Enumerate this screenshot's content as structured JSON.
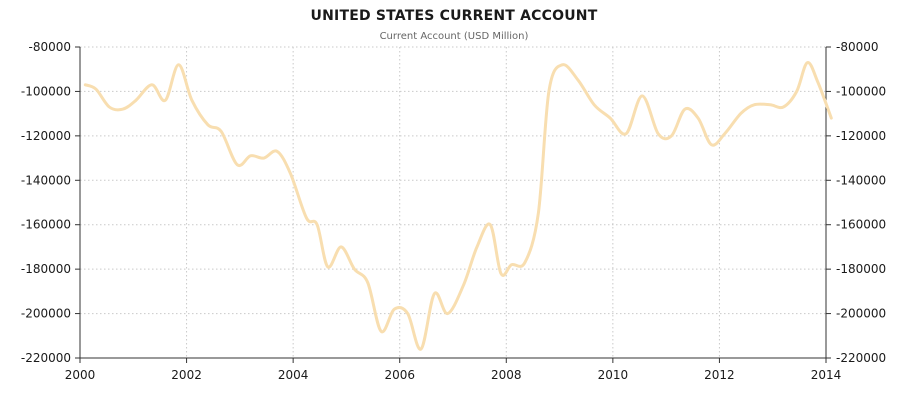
{
  "chart_data": {
    "type": "line",
    "title": "UNITED STATES CURRENT ACCOUNT",
    "subtitle": "Current Account (USD Million)",
    "xlabel": "",
    "ylabel": "",
    "xlim": [
      2000,
      2014
    ],
    "ylim": [
      -220000,
      -80000
    ],
    "x_ticks": [
      2000,
      2002,
      2004,
      2006,
      2008,
      2010,
      2012,
      2014
    ],
    "y_ticks": [
      -80000,
      -100000,
      -120000,
      -140000,
      -160000,
      -180000,
      -200000,
      -220000
    ],
    "y_axis_left": true,
    "y_axis_right": true,
    "grid": true,
    "line_color": "#f8deb0",
    "series": [
      {
        "x": [
          2000.1,
          2000.3,
          2000.55,
          2000.8,
          2001.05,
          2001.35,
          2001.6,
          2001.85,
          2002.1,
          2002.4,
          2002.65,
          2002.95,
          2003.2,
          2003.45,
          2003.7,
          2003.95,
          2004.25,
          2004.45,
          2004.65,
          2004.9,
          2005.15,
          2005.4,
          2005.65,
          2005.9,
          2006.15,
          2006.4,
          2006.65,
          2006.9,
          2007.2,
          2007.45,
          2007.7,
          2007.9,
          2008.1,
          2008.35,
          2008.6,
          2008.8,
          2009.05,
          2009.35,
          2009.65,
          2009.95,
          2010.25,
          2010.55,
          2010.85,
          2011.1,
          2011.35,
          2011.6,
          2011.85,
          2012.1,
          2012.4,
          2012.65,
          2012.95,
          2013.2,
          2013.45,
          2013.65,
          2013.85,
          2014.1
        ],
        "values": [
          -97000,
          -99000,
          -107000,
          -108000,
          -104000,
          -97000,
          -104000,
          -88000,
          -104000,
          -115000,
          -118000,
          -133000,
          -129000,
          -130000,
          -127000,
          -137000,
          -157000,
          -160000,
          -179000,
          -170000,
          -180000,
          -186000,
          -208000,
          -198000,
          -200000,
          -216000,
          -191000,
          -200000,
          -187000,
          -170000,
          -160000,
          -182000,
          -178000,
          -177000,
          -155000,
          -100000,
          -88000,
          -95000,
          -106000,
          -112000,
          -119000,
          -102000,
          -119000,
          -120000,
          -108000,
          -112000,
          -124000,
          -119000,
          -110000,
          -106000,
          -106000,
          -107000,
          -100000,
          -87000,
          -96000,
          -112000
        ]
      }
    ]
  }
}
